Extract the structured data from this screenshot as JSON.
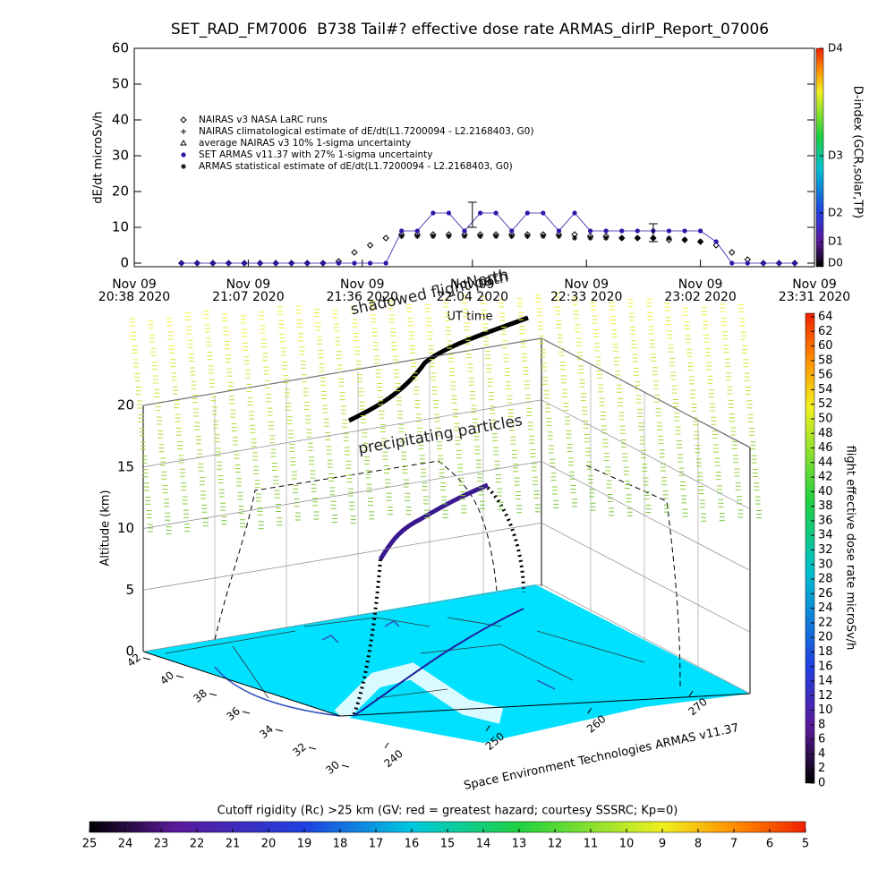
{
  "chart_data": [
    {
      "type": "line",
      "title": "SET_RAD_FM7006  B738 Tail#? effective dose rate ARMAS_dirIP_Report_07006",
      "ylabel": "dE/dt microSv/h",
      "xlabel": "UT time",
      "legend": "upper left",
      "x": [
        "2020-11-09T20:50",
        "2020-11-09T20:54",
        "2020-11-09T20:58",
        "2020-11-09T21:02",
        "2020-11-09T21:06",
        "2020-11-09T21:10",
        "2020-11-09T21:14",
        "2020-11-09T21:18",
        "2020-11-09T21:22",
        "2020-11-09T21:26",
        "2020-11-09T21:30",
        "2020-11-09T21:34",
        "2020-11-09T21:38",
        "2020-11-09T21:42",
        "2020-11-09T21:46",
        "2020-11-09T21:50",
        "2020-11-09T21:54",
        "2020-11-09T21:58",
        "2020-11-09T22:02",
        "2020-11-09T22:06",
        "2020-11-09T22:10",
        "2020-11-09T22:14",
        "2020-11-09T22:18",
        "2020-11-09T22:22",
        "2020-11-09T22:26",
        "2020-11-09T22:30",
        "2020-11-09T22:34",
        "2020-11-09T22:38",
        "2020-11-09T22:42",
        "2020-11-09T22:46",
        "2020-11-09T22:50",
        "2020-11-09T22:54",
        "2020-11-09T22:58",
        "2020-11-09T23:02",
        "2020-11-09T23:06",
        "2020-11-09T23:10",
        "2020-11-09T23:14",
        "2020-11-09T23:18",
        "2020-11-09T23:22",
        "2020-11-09T23:26"
      ],
      "series": [
        {
          "name": "NAIRAS v3 NASA LaRC runs",
          "color": "#000000",
          "marker": "diamond",
          "values": [
            0,
            0,
            0,
            0,
            0,
            0,
            0,
            0,
            0,
            0,
            0.5,
            3,
            5,
            7,
            8,
            8,
            8,
            8,
            8,
            8,
            8,
            8,
            8,
            8,
            8,
            8,
            7.5,
            7.5,
            7,
            7,
            7,
            6.5,
            6.5,
            6,
            5,
            3,
            1,
            0,
            0,
            0
          ]
        },
        {
          "name": "NAIRAS climatological estimate of dE/dt(L1.7200094 - L2.2168403, G0)",
          "color": "#000000",
          "marker": "plus",
          "values": [
            null,
            null,
            null,
            null,
            null,
            null,
            null,
            null,
            null,
            null,
            null,
            null,
            null,
            null,
            7.5,
            7.5,
            7.5,
            7.5,
            7.5,
            7.5,
            7.5,
            7.5,
            7.5,
            7.5,
            7.5,
            7,
            7,
            7,
            7,
            7,
            7,
            7,
            6.5,
            6,
            null,
            null,
            null,
            null,
            null,
            null
          ]
        },
        {
          "name": "average NAIRAS v3 10% 1-sigma uncertainty",
          "color": "#000000",
          "marker": "triangle",
          "values": [
            null,
            null,
            null,
            null,
            null,
            null,
            null,
            null,
            null,
            null,
            null,
            null,
            null,
            null,
            null,
            null,
            null,
            null,
            null,
            null,
            null,
            null,
            null,
            null,
            null,
            null,
            null,
            null,
            null,
            null,
            null,
            null,
            null,
            null,
            null,
            null,
            null,
            null,
            null,
            null
          ]
        },
        {
          "name": "SET ARMAS v11.37 with 27% 1-sigma uncertainty",
          "color": "#2a18a8",
          "marker": "dot",
          "connected": true,
          "values": [
            0,
            0,
            0,
            0,
            0,
            0,
            0,
            0,
            0,
            0,
            0,
            0,
            0,
            0,
            9,
            9,
            14,
            14,
            9,
            14,
            14,
            9,
            14,
            14,
            9,
            14,
            9,
            9,
            9,
            9,
            9,
            9,
            9,
            9,
            6,
            0,
            0,
            0,
            0,
            0
          ]
        },
        {
          "name": "ARMAS statistical estimate of dE/dt(L1.7200094 - L2.2168403, G0)",
          "color": "#000000",
          "marker": "star",
          "values": [
            null,
            null,
            null,
            null,
            null,
            null,
            null,
            null,
            null,
            null,
            null,
            null,
            null,
            null,
            7.5,
            7.5,
            7.5,
            7.5,
            7.5,
            7.5,
            7.5,
            7.5,
            7.5,
            7.5,
            7.5,
            7,
            7,
            7,
            7,
            7,
            7,
            7,
            6.5,
            6,
            null,
            null,
            null,
            null,
            null,
            null
          ]
        }
      ],
      "error_bars": [
        {
          "x": "2020-11-09T22:04",
          "low": 10,
          "high": 17
        },
        {
          "x": "2020-11-09T22:50",
          "low": 6,
          "high": 11
        }
      ],
      "xlim": [
        "2020-11-09T20:38",
        "2020-11-09T23:31"
      ],
      "xticks": [
        {
          "value": "2020-11-09T20:38",
          "label": [
            "Nov 09",
            "20:38 2020"
          ]
        },
        {
          "value": "2020-11-09T21:07",
          "label": [
            "Nov 09",
            "21:07 2020"
          ]
        },
        {
          "value": "2020-11-09T21:36",
          "label": [
            "Nov 09",
            "21:36 2020"
          ]
        },
        {
          "value": "2020-11-09T22:04",
          "label": [
            "Nov 09",
            "22:04 2020"
          ]
        },
        {
          "value": "2020-11-09T22:33",
          "label": [
            "Nov 09",
            "22:33 2020"
          ]
        },
        {
          "value": "2020-11-09T23:02",
          "label": [
            "Nov 09",
            "23:02 2020"
          ]
        },
        {
          "value": "2020-11-09T23:31",
          "label": [
            "Nov 09",
            "23:31 2020"
          ]
        }
      ],
      "ylim": [
        -1,
        60
      ],
      "yticks": [
        0,
        10,
        20,
        30,
        40,
        50,
        60
      ],
      "colorbar": {
        "label": "D-index (GCR,solar,TP)",
        "ticks": [
          {
            "value": 0,
            "label": "D0"
          },
          {
            "value": 6,
            "label": "D1"
          },
          {
            "value": 14,
            "label": "D2"
          },
          {
            "value": 30,
            "label": "D3"
          },
          {
            "value": 60,
            "label": "D4"
          }
        ]
      }
    },
    {
      "type": "3d-trajectory",
      "zlabel": "Altitude (km)",
      "zlim": [
        0,
        20
      ],
      "zticks": [
        0,
        5,
        10,
        15,
        20
      ],
      "latticks": [
        42,
        40,
        38,
        36,
        34,
        32,
        30
      ],
      "lonticks": [
        240,
        250,
        260,
        270
      ],
      "annotations": [
        "shadowed flight path",
        "North",
        "precipitating particles"
      ],
      "credit": "Space Environment Technologies ARMAS v11.37",
      "dose_colorbar": {
        "label": "flight effective dose rate microSv/h",
        "lim": [
          0,
          64
        ],
        "ticks": [
          0,
          2,
          4,
          6,
          8,
          10,
          12,
          14,
          16,
          18,
          20,
          22,
          24,
          26,
          28,
          30,
          32,
          34,
          36,
          38,
          40,
          42,
          44,
          46,
          48,
          50,
          52,
          54,
          56,
          58,
          60,
          62,
          64
        ]
      },
      "rigidity_colorbar": {
        "label": "Cutoff rigidity (Rc) >25 km (GV: red = greatest hazard; courtesy SSSRC; Kp=0)",
        "lim": [
          25,
          5
        ],
        "ticks": [
          25,
          24,
          23,
          22,
          21,
          20,
          19,
          18,
          17,
          16,
          15,
          14,
          13,
          12,
          11,
          10,
          9,
          8,
          7,
          6,
          5
        ]
      }
    }
  ]
}
